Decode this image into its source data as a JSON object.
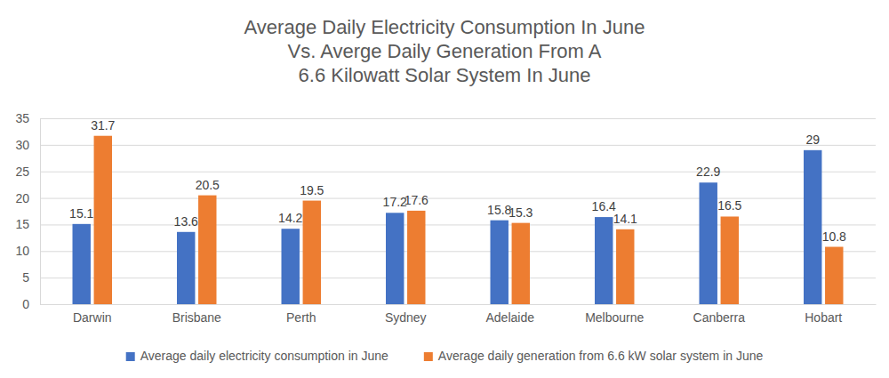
{
  "chart_data": {
    "type": "bar",
    "title": [
      "Average Daily Electricity Consumption In June",
      "Vs. Averge Daily Generation From A",
      "6.6 Kilowatt Solar System In June"
    ],
    "categories": [
      "Darwin",
      "Brisbane",
      "Perth",
      "Sydney",
      "Adelaide",
      "Melbourne",
      "Canberra",
      "Hobart"
    ],
    "series": [
      {
        "name": "Average daily electricity consumption in June",
        "color": "#4472c4",
        "values": [
          15.1,
          13.6,
          14.2,
          17.2,
          15.8,
          16.4,
          22.9,
          29
        ]
      },
      {
        "name": "Average daily generation from 6.6 kW solar system in June",
        "color": "#ed7d31",
        "values": [
          31.7,
          20.5,
          19.5,
          17.6,
          15.3,
          14.1,
          16.5,
          10.8
        ]
      }
    ],
    "ylim": [
      0,
      35
    ],
    "yticks": [
      0,
      5,
      10,
      15,
      20,
      25,
      30,
      35
    ],
    "grid": true,
    "legend": "bottom",
    "data_labels": true
  }
}
